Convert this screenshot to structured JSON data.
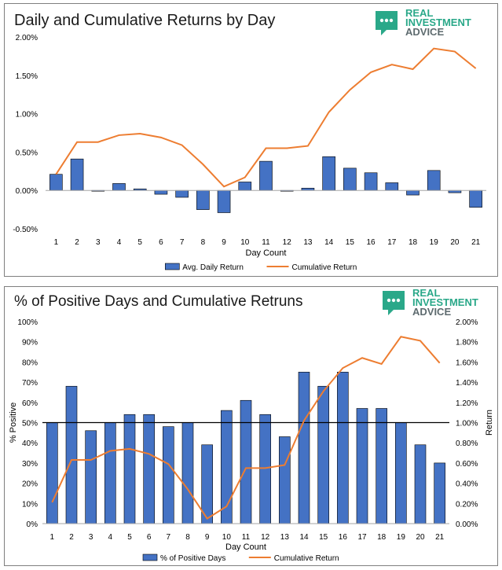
{
  "brand": {
    "line1": "REAL",
    "line2": "INVESTMENT",
    "line3": "ADVICE",
    "teal": "#2aa889",
    "gray": "#5e6b6f"
  },
  "colors": {
    "bar": "#4472c4",
    "bar_edge": "#000000",
    "line": "#ed7d31"
  },
  "chart_data": [
    {
      "type": "bar",
      "title": "Daily and Cumulative Returns by Day",
      "xlabel": "Day Count",
      "ylabel": "",
      "categories": [
        "1",
        "2",
        "3",
        "4",
        "5",
        "6",
        "7",
        "8",
        "9",
        "10",
        "11",
        "12",
        "13",
        "14",
        "15",
        "16",
        "17",
        "18",
        "19",
        "20",
        "21"
      ],
      "ylim": [
        -0.5,
        2.0
      ],
      "yticks": [
        "-0.50%",
        "0.00%",
        "0.50%",
        "1.00%",
        "1.50%",
        "2.00%"
      ],
      "grid": false,
      "legend": "bottom",
      "series": [
        {
          "name": "Avg. Daily Return",
          "type": "bar",
          "values": [
            0.21,
            0.41,
            -0.01,
            0.09,
            0.02,
            -0.05,
            -0.09,
            -0.25,
            -0.29,
            0.11,
            0.38,
            -0.01,
            0.03,
            0.44,
            0.29,
            0.23,
            0.1,
            -0.06,
            0.26,
            -0.03,
            -0.22
          ]
        },
        {
          "name": "Cumulative Return",
          "type": "line",
          "values": [
            0.21,
            0.63,
            0.63,
            0.72,
            0.74,
            0.69,
            0.59,
            0.34,
            0.05,
            0.17,
            0.55,
            0.55,
            0.58,
            1.02,
            1.31,
            1.54,
            1.64,
            1.58,
            1.85,
            1.81,
            1.59
          ]
        }
      ]
    },
    {
      "type": "bar",
      "title": "% of Positive Days and Cumulative Retruns",
      "xlabel": "Day Count",
      "ylabel": "% Positive",
      "y2label": "Return",
      "categories": [
        "1",
        "2",
        "3",
        "4",
        "5",
        "6",
        "7",
        "8",
        "9",
        "10",
        "11",
        "12",
        "13",
        "14",
        "15",
        "16",
        "17",
        "18",
        "19",
        "20",
        "21"
      ],
      "ylim": [
        0,
        100
      ],
      "y2lim": [
        0,
        2.0
      ],
      "yticks": [
        "0%",
        "10%",
        "20%",
        "30%",
        "40%",
        "50%",
        "60%",
        "70%",
        "80%",
        "90%",
        "100%"
      ],
      "y2ticks": [
        "0.00%",
        "0.20%",
        "0.40%",
        "0.60%",
        "0.80%",
        "1.00%",
        "1.20%",
        "1.40%",
        "1.60%",
        "1.80%",
        "2.00%"
      ],
      "reference_line": 50,
      "grid": false,
      "legend": "bottom",
      "series": [
        {
          "name": "% of Positive Days",
          "type": "bar",
          "axis": "left",
          "values": [
            50,
            68,
            46,
            50,
            54,
            54,
            48,
            50,
            39,
            56,
            61,
            54,
            43,
            75,
            68,
            75,
            57,
            57,
            50,
            39,
            30
          ]
        },
        {
          "name": "Cumulative Return",
          "type": "line",
          "axis": "right",
          "values": [
            0.21,
            0.63,
            0.63,
            0.72,
            0.74,
            0.69,
            0.59,
            0.34,
            0.05,
            0.17,
            0.55,
            0.55,
            0.58,
            1.02,
            1.31,
            1.54,
            1.64,
            1.58,
            1.85,
            1.81,
            1.59
          ]
        }
      ]
    }
  ]
}
